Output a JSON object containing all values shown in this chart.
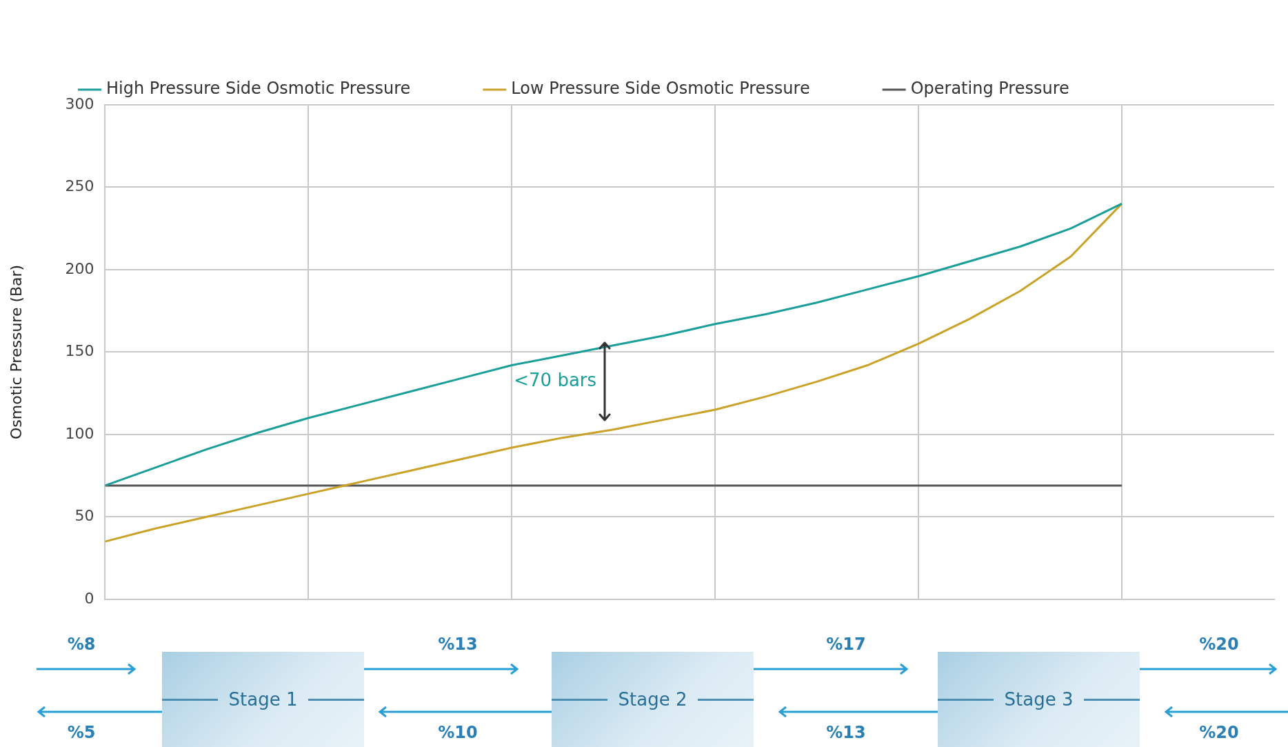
{
  "chart_data": {
    "type": "line",
    "ylabel": "Osmotic Pressure (Bar)",
    "categories": [
      null,
      null,
      null,
      null,
      null,
      null,
      null,
      null,
      null,
      null,
      null,
      null,
      null,
      null,
      null,
      null,
      null,
      null,
      null,
      null,
      null
    ],
    "series": [
      {
        "name": "High Pressure Side Osmotic Pressure",
        "color": "#1a9e9a",
        "values": [
          69,
          80,
          91,
          101,
          110,
          118,
          126,
          134,
          142,
          148,
          154,
          160,
          167,
          173,
          180,
          188,
          196,
          205,
          214,
          225,
          240
        ]
      },
      {
        "name": "Low Pressure Side Osmotic Pressure",
        "color": "#c9a227",
        "values": [
          35,
          43,
          50,
          57,
          64,
          71,
          78,
          85,
          92,
          98,
          103,
          109,
          115,
          123,
          132,
          142,
          155,
          170,
          187,
          208,
          240
        ]
      },
      {
        "name": "Operating Pressure",
        "color": "#555555",
        "values": [
          69,
          69,
          69,
          69,
          69,
          69,
          69,
          69,
          69,
          69,
          69,
          69,
          69,
          69,
          69,
          69,
          69,
          69,
          69,
          69,
          69
        ]
      }
    ],
    "ylim": [
      0,
      300
    ],
    "yticks": [
      0,
      50,
      100,
      150,
      200,
      250,
      300
    ],
    "grid": true,
    "legend": "top",
    "tick_labels": "y",
    "marker": "none",
    "line_style": "solid",
    "annotations": [
      "<70 bars",
      "%8",
      "%13",
      "%17",
      "%20",
      "%5",
      "%10",
      "%13",
      "%20",
      "Stage 1",
      "Stage 2",
      "Stage 3"
    ]
  }
}
